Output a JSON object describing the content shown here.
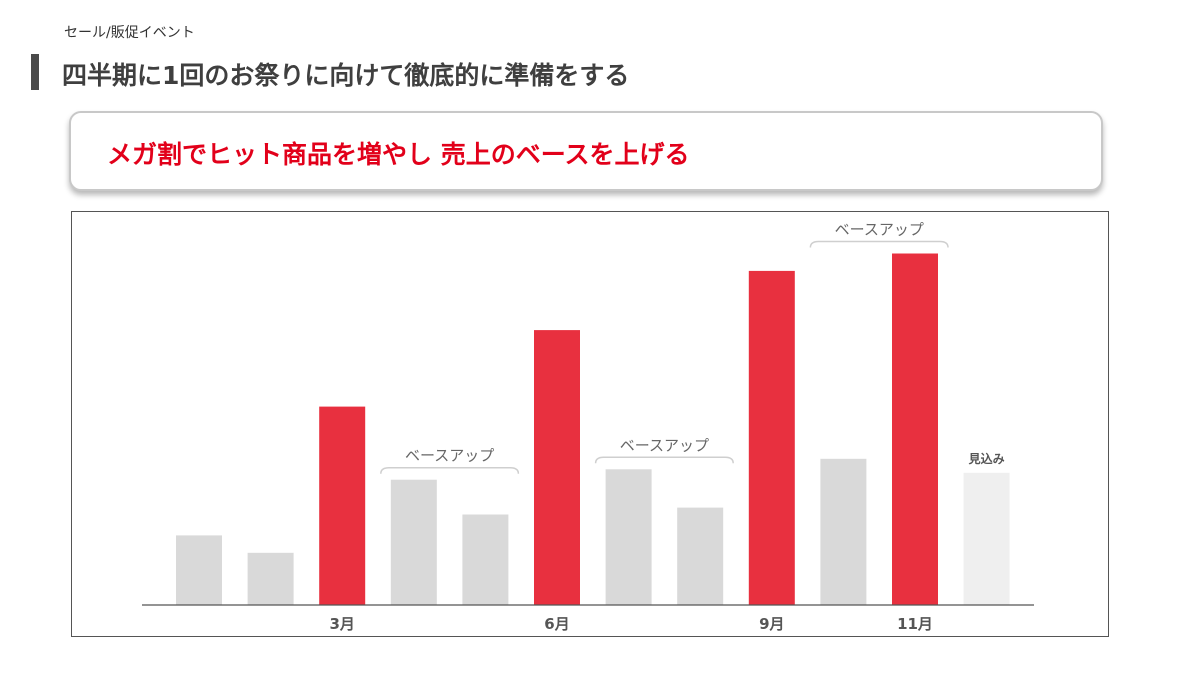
{
  "header": {
    "breadcrumb": "セール/販促イベント",
    "title": "四半期に1回のお祭りに向けて徹底的に準備をする"
  },
  "callout": {
    "text": "メガ割でヒット商品を増やし 売上のベースを上げる"
  },
  "colors": {
    "event": "#e8303f",
    "base": "#d9d9d9",
    "forecast": "#efefef",
    "accent_text": "#e2001a",
    "annotation": "#666666"
  },
  "chart_data": {
    "type": "bar",
    "title": "",
    "xlabel": "",
    "ylabel": "",
    "ylim": [
      0,
      100
    ],
    "grid": false,
    "legend": "none",
    "categories": [
      "",
      "",
      "3月",
      "",
      "",
      "6月",
      "",
      "",
      "9月",
      "",
      "11月",
      ""
    ],
    "values": [
      20,
      15,
      57,
      36,
      26,
      79,
      39,
      28,
      96,
      42,
      101,
      38
    ],
    "bar_types": [
      "base",
      "base",
      "event",
      "base",
      "base",
      "event",
      "base",
      "base",
      "event",
      "base",
      "event",
      "forecast"
    ],
    "annotations": [
      {
        "text": "ベースアップ",
        "from_index": 3,
        "to_index": 4
      },
      {
        "text": "ベースアップ",
        "from_index": 6,
        "to_index": 7
      },
      {
        "text": "ベースアップ",
        "from_index": 9,
        "to_index": 10
      }
    ],
    "bar_labels": [
      {
        "index": 11,
        "text": "見込み"
      }
    ]
  }
}
